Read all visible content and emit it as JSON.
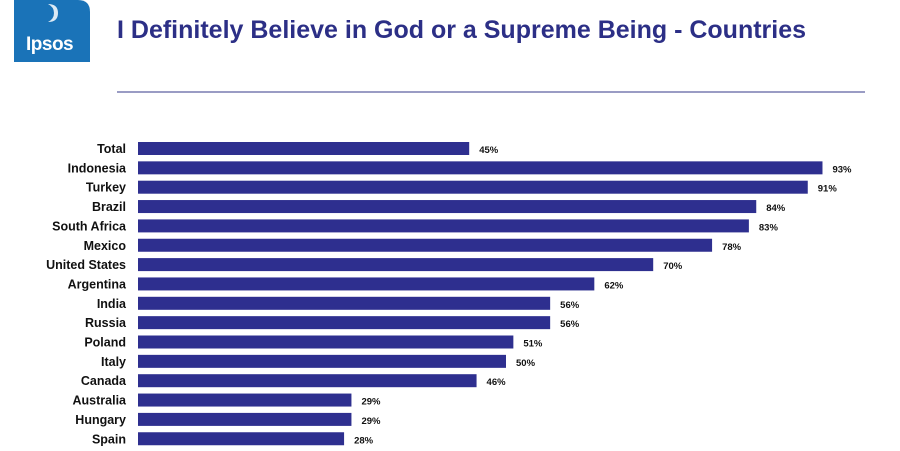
{
  "brand": {
    "logo_text": "Ipsos",
    "logo_color": "#1a73b8"
  },
  "header": {
    "title": "I Definitely  Believe in God or a Supreme Being - Countries"
  },
  "chart_data": {
    "type": "bar",
    "orientation": "horizontal",
    "title": "I Definitely  Believe in God or a Supreme Being - Countries",
    "categories": [
      "Total",
      "Indonesia",
      "Turkey",
      "Brazil",
      "South Africa",
      "Mexico",
      "United States",
      "Argentina",
      "India",
      "Russia",
      "Poland",
      "Italy",
      "Canada",
      "Australia",
      "Hungary",
      "Spain"
    ],
    "values": [
      45,
      93,
      91,
      84,
      83,
      78,
      70,
      62,
      56,
      56,
      51,
      50,
      46,
      29,
      29,
      28
    ],
    "value_labels": [
      "45%",
      "93%",
      "91%",
      "84%",
      "83%",
      "78%",
      "70%",
      "62%",
      "56%",
      "56%",
      "51%",
      "50%",
      "46%",
      "29%",
      "29%",
      "28%"
    ],
    "xlim": [
      0,
      100
    ],
    "grid": false,
    "bar_color": "#2e2f8f"
  }
}
